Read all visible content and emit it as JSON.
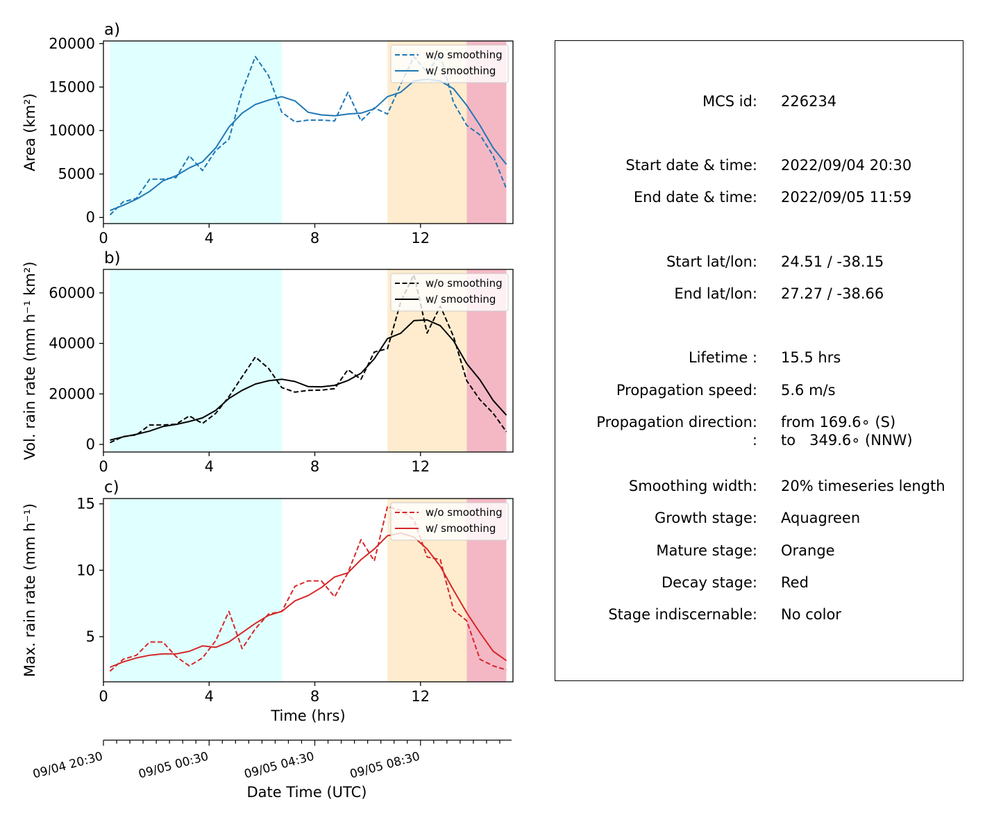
{
  "chart_data": [
    {
      "type": "line",
      "panel_label": "a)",
      "ylabel": "Area  (km²)",
      "xlim": [
        0,
        15.5
      ],
      "ylim": [
        -700,
        20300
      ],
      "xticks": [
        0,
        4,
        8,
        12
      ],
      "yticks": [
        0,
        5000,
        10000,
        15000,
        20000
      ],
      "color": "#1f77b4",
      "x": [
        0.25,
        0.75,
        1.25,
        1.75,
        2.25,
        2.75,
        3.25,
        3.75,
        4.25,
        4.75,
        5.25,
        5.75,
        6.25,
        6.75,
        7.25,
        7.75,
        8.25,
        8.75,
        9.25,
        9.75,
        10.25,
        10.75,
        11.25,
        11.75,
        12.25,
        12.75,
        13.25,
        13.75,
        14.25,
        14.75,
        15.25
      ],
      "series": [
        {
          "name": "w/o smoothing",
          "style": "dashed",
          "values": [
            300,
            1800,
            2200,
            4400,
            4400,
            4600,
            7100,
            5400,
            7700,
            9000,
            14500,
            18500,
            16300,
            12100,
            11000,
            11200,
            11200,
            11100,
            14400,
            11100,
            12600,
            11900,
            15300,
            18500,
            16700,
            18700,
            13200,
            10600,
            9500,
            7100,
            3300
          ]
        },
        {
          "name": "w/ smoothing",
          "style": "solid",
          "values": [
            800,
            1400,
            2100,
            3000,
            4200,
            4800,
            5700,
            6400,
            8000,
            10400,
            12000,
            13000,
            13500,
            13900,
            13400,
            12100,
            11800,
            11700,
            11900,
            12000,
            12500,
            13900,
            14400,
            15700,
            15900,
            15700,
            14800,
            12900,
            10600,
            8000,
            6100
          ]
        }
      ],
      "stages": [
        {
          "name": "Growth stage",
          "from": 0.25,
          "to": 6.75,
          "color": "#e0ffff"
        },
        {
          "name": "Mature stage",
          "from": 10.75,
          "to": 13.75,
          "color": "#ffecce"
        },
        {
          "name": "Decay stage",
          "from": 13.75,
          "to": 15.25,
          "color": "#f4b8c5"
        }
      ],
      "legend": "top-right"
    },
    {
      "type": "line",
      "panel_label": "b)",
      "ylabel": "Vol. rain rate (mm h⁻¹ km²)",
      "xlim": [
        0,
        15.5
      ],
      "ylim": [
        -3000,
        69300
      ],
      "xticks": [
        0,
        4,
        8,
        12
      ],
      "yticks": [
        0,
        20000,
        40000,
        60000
      ],
      "color": "#000000",
      "x": [
        0.25,
        0.75,
        1.25,
        1.75,
        2.25,
        2.75,
        3.25,
        3.75,
        4.25,
        4.75,
        5.25,
        5.75,
        6.25,
        6.75,
        7.25,
        7.75,
        8.25,
        8.75,
        9.25,
        9.75,
        10.25,
        10.75,
        11.25,
        11.75,
        12.25,
        12.75,
        13.25,
        13.75,
        14.25,
        14.75,
        15.25
      ],
      "series": [
        {
          "name": "w/o smoothing",
          "style": "dashed",
          "values": [
            700,
            3100,
            3800,
            7700,
            7700,
            8000,
            11300,
            8300,
            12300,
            18900,
            26800,
            34600,
            30100,
            22500,
            20700,
            21400,
            21500,
            22100,
            29600,
            25800,
            36600,
            37900,
            56300,
            67300,
            44100,
            54800,
            42700,
            25200,
            17700,
            12300,
            5000
          ]
        },
        {
          "name": "w/ smoothing",
          "style": "solid",
          "values": [
            1700,
            3000,
            4000,
            5300,
            7100,
            7900,
            9100,
            10500,
            13500,
            18200,
            21400,
            23900,
            25200,
            25800,
            24900,
            22900,
            22800,
            23400,
            25300,
            28200,
            33900,
            41900,
            44000,
            49000,
            49300,
            47000,
            41000,
            32000,
            25600,
            17400,
            11600
          ]
        }
      ],
      "stages": [
        {
          "name": "Growth stage",
          "from": 0.25,
          "to": 6.75,
          "color": "#e0ffff"
        },
        {
          "name": "Mature stage",
          "from": 10.75,
          "to": 13.75,
          "color": "#ffecce"
        },
        {
          "name": "Decay stage",
          "from": 13.75,
          "to": 15.25,
          "color": "#f4b8c5"
        }
      ],
      "legend": "top-right"
    },
    {
      "type": "line",
      "panel_label": "c)",
      "ylabel": "Max. rain rate  (mm h⁻¹)",
      "xlabel": "Time (hrs)",
      "xlim": [
        0,
        15.5
      ],
      "ylim": [
        1.6,
        15.4
      ],
      "xticks": [
        0,
        4,
        8,
        12
      ],
      "yticks": [
        5,
        10,
        15
      ],
      "color": "#d62728",
      "x": [
        0.25,
        0.75,
        1.25,
        1.75,
        2.25,
        2.75,
        3.25,
        3.75,
        4.25,
        4.75,
        5.25,
        5.75,
        6.25,
        6.75,
        7.25,
        7.75,
        8.25,
        8.75,
        9.25,
        9.75,
        10.25,
        10.75,
        11.25,
        11.75,
        12.25,
        12.75,
        13.25,
        13.75,
        14.25,
        14.75,
        15.25
      ],
      "series": [
        {
          "name": "w/o smoothing",
          "style": "dashed",
          "values": [
            2.4,
            3.3,
            3.6,
            4.6,
            4.6,
            3.5,
            2.8,
            3.4,
            4.7,
            6.9,
            4.1,
            5.6,
            6.7,
            6.9,
            8.8,
            9.2,
            9.2,
            8.0,
            9.8,
            12.3,
            10.7,
            14.8,
            14.5,
            13.8,
            11.0,
            10.8,
            7.0,
            6.2,
            3.3,
            2.8,
            2.5
          ]
        },
        {
          "name": "w/ smoothing",
          "style": "solid",
          "values": [
            2.7,
            3.1,
            3.4,
            3.6,
            3.7,
            3.7,
            3.9,
            4.3,
            4.2,
            4.6,
            5.3,
            6.0,
            6.6,
            6.9,
            7.7,
            8.1,
            8.7,
            9.5,
            9.8,
            10.8,
            11.6,
            12.6,
            12.8,
            12.5,
            11.6,
            10.3,
            8.5,
            6.8,
            5.3,
            3.9,
            3.2
          ]
        }
      ],
      "stages": [
        {
          "name": "Growth stage",
          "from": 0.25,
          "to": 6.75,
          "color": "#e0ffff"
        },
        {
          "name": "Mature stage",
          "from": 10.75,
          "to": 13.75,
          "color": "#ffecce"
        },
        {
          "name": "Decay stage",
          "from": 13.75,
          "to": 15.25,
          "color": "#f4b8c5"
        }
      ],
      "legend": "top-right"
    }
  ],
  "date_axis": {
    "xlabel": "Date Time (UTC)",
    "labels": [
      "09/04 20:30",
      "09/05 00:30",
      "09/05 04:30",
      "09/05 08:30"
    ],
    "major_hours": [
      0,
      4,
      8,
      12
    ],
    "minor_step_hours": 0.5,
    "range_hours": [
      0,
      15.5
    ]
  },
  "info": {
    "rows": [
      {
        "label": "MCS id:",
        "value": "226234"
      },
      {
        "label": "Start date & time:",
        "value": "2022/09/04 20:30"
      },
      {
        "label": "End date & time:",
        "value": "2022/09/05 11:59"
      },
      {
        "label": "Start lat/lon:",
        "value": "24.51 / -38.15"
      },
      {
        "label": "End lat/lon:",
        "value": "27.27 / -38.66"
      },
      {
        "label": "Lifetime :",
        "value": "15.5 hrs"
      },
      {
        "label": "Propagation speed:",
        "value": "5.6 m/s"
      },
      {
        "label": "Propagation direction:",
        "value": "from 169.6∘ (S)"
      },
      {
        "label": ":",
        "value": "to   349.6∘ (NNW)"
      },
      {
        "label": "Smoothing width:",
        "value": "20% timeseries length"
      },
      {
        "label": "Growth stage:",
        "value": "Aquagreen"
      },
      {
        "label": "Mature stage:",
        "value": "Orange"
      },
      {
        "label": "Decay stage:",
        "value": "Red"
      },
      {
        "label": "Stage indiscernable:",
        "value": "No color"
      }
    ]
  }
}
